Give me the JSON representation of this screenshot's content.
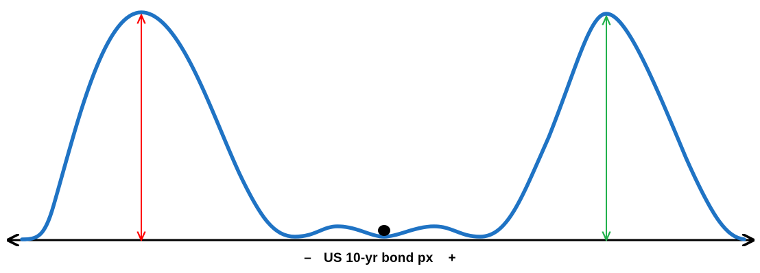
{
  "diagram": {
    "axis_label": "US 10-yr bond px",
    "minus_sign": "–",
    "plus_sign": "+",
    "colors": {
      "curve": "#1f73c4",
      "axis": "#000000",
      "left_arrow": "#ff0000",
      "right_arrow": "#22b14c",
      "marker": "#000000"
    }
  }
}
